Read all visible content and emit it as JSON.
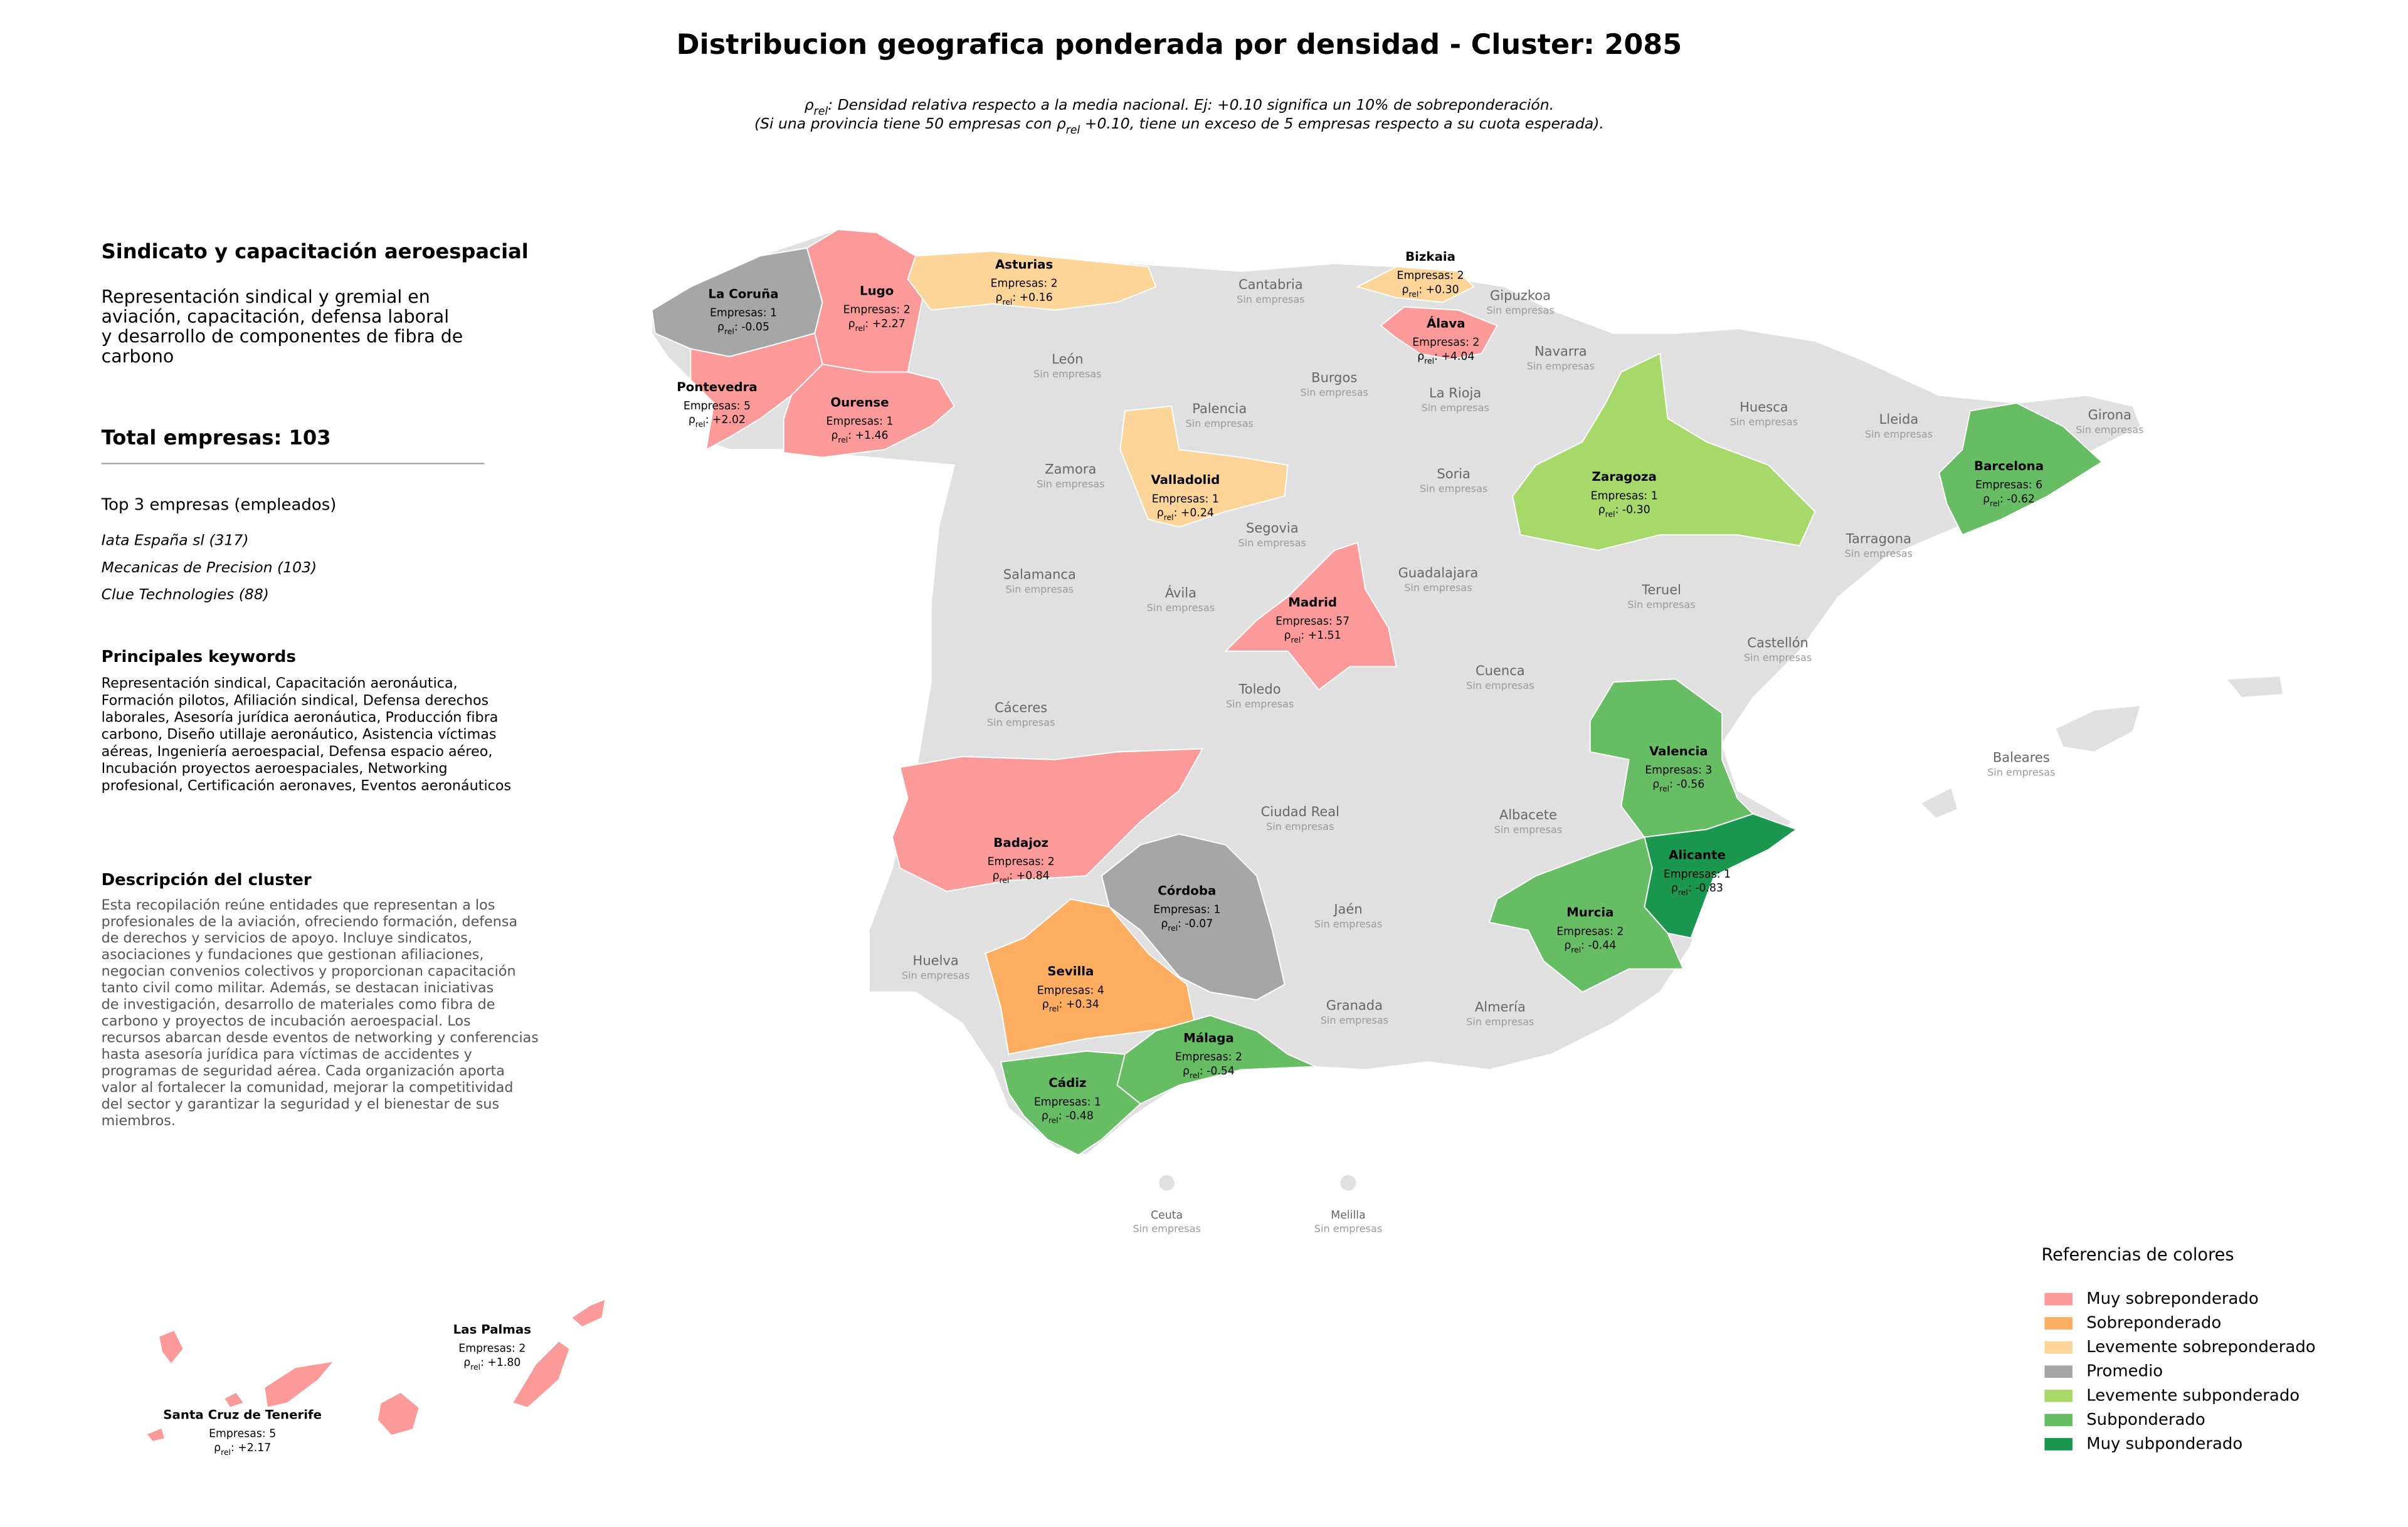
{
  "header": {
    "title": "Distribucion geografica ponderada por densidad - Cluster: 2085",
    "subtitle": [
      [
        {
          "text": "ρ"
        },
        {
          "text": "rel",
          "subscript": true
        },
        {
          "text": ": Densidad relativa respecto a la media nacional. Ej: +0.10 significa un 10% de sobreponderación."
        }
      ],
      [
        {
          "text": "(Si una provincia tiene 50 empresas con "
        },
        {
          "text": "ρ"
        },
        {
          "text": "rel",
          "subscript": true
        },
        {
          "text": " +0.10, tiene un exceso de 5 empresas respecto a su cuota esperada)."
        }
      ]
    ]
  },
  "panel": {
    "cluster_name": "Sindicato y capacitación aeroespacial",
    "cluster_summary": [
      "Representación sindical y gremial en",
      "aviación, capacitación, defensa laboral",
      "y desarrollo de componentes de fibra de",
      "carbono"
    ],
    "total": "Total empresas: 103",
    "top_title": "Top 3 empresas (empleados)",
    "top_companies": [
      "Iata España sl (317)",
      "Mecanicas de Precision (103)",
      "Clue Technologies (88)"
    ],
    "keywords_title": "Principales keywords",
    "keywords": [
      "Representación sindical, Capacitación aeronáutica,",
      "Formación pilotos, Afiliación sindical, Defensa derechos",
      "laborales, Asesoría jurídica aeronáutica, Producción fibra",
      "carbono, Diseño utillaje aeronáutico, Asistencia víctimas",
      "aéreas, Ingeniería aeroespacial, Defensa espacio aéreo,",
      "Incubación proyectos aeroespaciales, Networking",
      "profesional, Certificación aeronaves, Eventos aeronáuticos"
    ],
    "description_title": "Descripción del cluster",
    "description": [
      "Esta recopilación reúne entidades que representan a los",
      "profesionales de la aviación, ofreciendo formación, defensa",
      "de derechos y servicios de apoyo. Incluye sindicatos,",
      "asociaciones y fundaciones que gestionan afiliaciones,",
      "negocian convenios colectivos y proporcionan capacitación",
      "tanto civil como militar. Además, se destacan iniciativas",
      "de investigación, desarrollo de materiales como fibra de",
      "carbono y proyectos de incubación aeroespacial. Los",
      "recursos abarcan desde eventos de networking y conferencias",
      "hasta asesoría jurídica para víctimas de accidentes y",
      "programas de seguridad aérea. Cada organización aporta",
      "valor al fortalecer la comunidad, mejorar la competitividad",
      "del sector y garantizar la seguridad y el bienestar de sus",
      "miembros."
    ]
  },
  "map": {
    "rho_symbol": "ρ",
    "rho_subscript": "rel",
    "rho_separator": ": ",
    "empty_label": "Sin empresas",
    "provinces": [
      {
        "name": "La Coruña",
        "empresas": "Empresas: 1",
        "rho": "-0.05",
        "class": 3
      },
      {
        "name": "Lugo",
        "empresas": "Empresas: 2",
        "rho": "+2.27",
        "class": 0
      },
      {
        "name": "Asturias",
        "empresas": "Empresas: 2",
        "rho": "+0.16",
        "class": 2
      },
      {
        "name": "Bizkaia",
        "empresas": "Empresas: 2",
        "rho": "+0.30",
        "class": 2
      },
      {
        "name": "Álava",
        "empresas": "Empresas: 2",
        "rho": "+4.04",
        "class": 0
      },
      {
        "name": "Pontevedra",
        "empresas": "Empresas: 5",
        "rho": "+2.02",
        "class": 0
      },
      {
        "name": "Ourense",
        "empresas": "Empresas: 1",
        "rho": "+1.46",
        "class": 0
      },
      {
        "name": "Valladolid",
        "empresas": "Empresas: 1",
        "rho": "+0.24",
        "class": 2
      },
      {
        "name": "Zaragoza",
        "empresas": "Empresas: 1",
        "rho": "-0.30",
        "class": 4
      },
      {
        "name": "Barcelona",
        "empresas": "Empresas: 6",
        "rho": "-0.62",
        "class": 5
      },
      {
        "name": "Madrid",
        "empresas": "Empresas: 57",
        "rho": "+1.51",
        "class": 0
      },
      {
        "name": "Valencia",
        "empresas": "Empresas: 3",
        "rho": "-0.56",
        "class": 5
      },
      {
        "name": "Alicante",
        "empresas": "Empresas: 1",
        "rho": "-0.83",
        "class": 6
      },
      {
        "name": "Murcia",
        "empresas": "Empresas: 2",
        "rho": "-0.44",
        "class": 5
      },
      {
        "name": "Badajoz",
        "empresas": "Empresas: 2",
        "rho": "+0.84",
        "class": 0
      },
      {
        "name": "Córdoba",
        "empresas": "Empresas: 1",
        "rho": "-0.07",
        "class": 3
      },
      {
        "name": "Sevilla",
        "empresas": "Empresas: 4",
        "rho": "+0.34",
        "class": 1
      },
      {
        "name": "Málaga",
        "empresas": "Empresas: 2",
        "rho": "-0.54",
        "class": 5
      },
      {
        "name": "Cádiz",
        "empresas": "Empresas: 1",
        "rho": "-0.48",
        "class": 5
      },
      {
        "name": "Las Palmas",
        "empresas": "Empresas: 2",
        "rho": "+1.80",
        "class": 0
      },
      {
        "name": "Santa Cruz de Tenerife",
        "empresas": "Empresas: 5",
        "rho": "+2.17",
        "class": 0
      }
    ],
    "empty_provinces": [
      "Cantabria",
      "Gipuzkoa",
      "León",
      "Navarra",
      "Burgos",
      "Huesca",
      "Palencia",
      "La Rioja",
      "Lleida",
      "Girona",
      "Zamora",
      "Soria",
      "Segovia",
      "Tarragona",
      "Salamanca",
      "Guadalajara",
      "Ávila",
      "Teruel",
      "Castellón",
      "Cuenca",
      "Toledo",
      "Cáceres",
      "Baleares",
      "Ciudad Real",
      "Albacete",
      "Jaén",
      "Huelva",
      "Granada",
      "Almería",
      "Ceuta",
      "Melilla"
    ]
  },
  "legend": {
    "title": "Referencias de colores",
    "items": [
      {
        "label": "Muy sobreponderado",
        "color": "#fb9a99"
      },
      {
        "label": "Sobreponderado",
        "color": "#fdae61"
      },
      {
        "label": "Levemente sobreponderado",
        "color": "#fed598"
      },
      {
        "label": "Promedio",
        "color": "#a6a6a6"
      },
      {
        "label": "Levemente subponderado",
        "color": "#a6d96a"
      },
      {
        "label": "Subponderado",
        "color": "#66bd63"
      },
      {
        "label": "Muy subponderado",
        "color": "#1a9850"
      }
    ]
  }
}
